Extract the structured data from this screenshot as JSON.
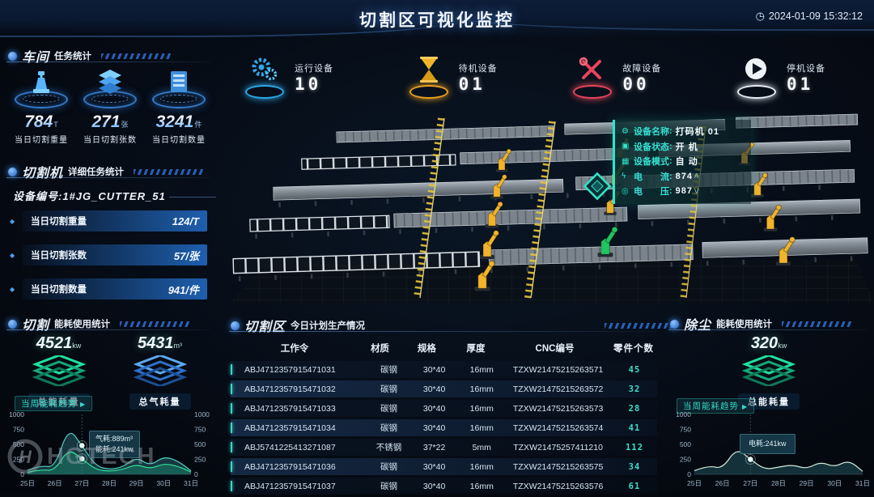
{
  "icons": {
    "play": "▶",
    "clock": "◷",
    "diamond": "◆"
  },
  "header": {
    "title": "切割区可视化监控",
    "timestamp": "2024-01-09 15:32:12"
  },
  "workshop_panel": {
    "title": "车间",
    "subtitle": "任务统计",
    "stats": [
      {
        "value": "784",
        "unit": "T",
        "label": "当日切割重量"
      },
      {
        "value": "271",
        "unit": "张",
        "label": "当日切割张数"
      },
      {
        "value": "3241",
        "unit": "件",
        "label": "当日切割数量"
      }
    ]
  },
  "cutter_panel": {
    "title": "切割机",
    "subtitle": "详细任务统计",
    "device_no": "设备编号:1#JG_CUTTER_51",
    "rows": [
      {
        "label": "当日切割重量",
        "value": "124/T"
      },
      {
        "label": "当日切割张数",
        "value": "57/张"
      },
      {
        "label": "当日切割数量",
        "value": "941/件"
      }
    ]
  },
  "cutting_energy_panel": {
    "title": "切割",
    "subtitle": "能耗使用统计",
    "stats": [
      {
        "value": "4521",
        "unit": "kw",
        "label": "总能耗量"
      },
      {
        "value": "5431",
        "unit": "m³",
        "label": "总气耗量"
      }
    ],
    "trend_button": "当周能耗趋势"
  },
  "dust_energy_panel": {
    "title": "除尘",
    "subtitle": "能耗使用统计",
    "stats": [
      {
        "value": "320",
        "unit": "kw",
        "label": "总能耗量"
      }
    ],
    "trend_button": "当周能耗趋势"
  },
  "status_bar": {
    "items": [
      {
        "label": "运行设备",
        "value": "10",
        "color": "#2ea8e8"
      },
      {
        "label": "待机设备",
        "value": "01",
        "color": "#e8a020"
      },
      {
        "label": "故障设备",
        "value": "00",
        "color": "#e8445a"
      },
      {
        "label": "停机设备",
        "value": "01",
        "color": "#e8eef5"
      }
    ]
  },
  "device_tooltip": {
    "rows": [
      {
        "label": "设备名称",
        "value": "打码机 01",
        "unit": ""
      },
      {
        "label": "设备状态",
        "value": "开 机",
        "unit": ""
      },
      {
        "label": "设备模式",
        "value": "自 动",
        "unit": ""
      },
      {
        "label": "电　　流",
        "value": "874",
        "unit": "A"
      },
      {
        "label": "电　　压",
        "value": "987",
        "unit": "V"
      }
    ]
  },
  "production_panel": {
    "title": "切割区",
    "subtitle": "今日计划生产情况",
    "columns": [
      "工作令",
      "材质",
      "规格",
      "厚度",
      "CNC编号",
      "零件个数"
    ],
    "rows": [
      {
        "work_order": "ABJ4712357915471031",
        "material": "碳钢",
        "spec": "30*40",
        "thickness": "16mm",
        "cnc": "TZXW21475215263571",
        "count": "45"
      },
      {
        "work_order": "ABJ4712357915471032",
        "material": "碳钢",
        "spec": "30*40",
        "thickness": "16mm",
        "cnc": "TZXW21475215263572",
        "count": "32"
      },
      {
        "work_order": "ABJ4712357915471033",
        "material": "碳钢",
        "spec": "30*40",
        "thickness": "16mm",
        "cnc": "TZXW21475215263573",
        "count": "28"
      },
      {
        "work_order": "ABJ4712357915471034",
        "material": "碳钢",
        "spec": "30*40",
        "thickness": "16mm",
        "cnc": "TZXW21475215263574",
        "count": "41"
      },
      {
        "work_order": "ABJ5741225413271087",
        "material": "不锈钢",
        "spec": "37*22",
        "thickness": "5mm",
        "cnc": "TZXW21475257411210",
        "count": "112"
      },
      {
        "work_order": "ABJ4712357915471036",
        "material": "碳钢",
        "spec": "30*40",
        "thickness": "16mm",
        "cnc": "TZXW21475215263575",
        "count": "34"
      },
      {
        "work_order": "ABJ4712357915471037",
        "material": "碳钢",
        "spec": "30*40",
        "thickness": "16mm",
        "cnc": "TZXW21475215263576",
        "count": "61"
      }
    ]
  },
  "logo": {
    "text": "HGTECH"
  },
  "chart_data": [
    {
      "type": "area",
      "title": "当周能耗趋势",
      "x_labels": [
        "25日",
        "26日",
        "27日",
        "28日",
        "29日",
        "30日",
        "31日"
      ],
      "ylim": [
        0,
        1000
      ],
      "yticks": [
        0,
        250,
        500,
        750,
        1000
      ],
      "dual_axis": true,
      "grid": false,
      "marker_index": 4,
      "series": [
        {
          "name": "气耗",
          "color": "#4fd0c0",
          "fill": "rgba(42,104,114,0.50)",
          "values": [
            70,
            150,
            110,
            790,
            480,
            140,
            80,
            120,
            290,
            140,
            300,
            230,
            60
          ]
        },
        {
          "name": "能耗",
          "color": "#35e09a",
          "fill": "rgba(30,190,140,0.28)",
          "values": [
            35,
            80,
            60,
            430,
            260,
            80,
            50,
            80,
            170,
            90,
            180,
            140,
            40
          ]
        }
      ],
      "tooltip": [
        "气耗:889m³",
        "能耗:241kw"
      ]
    },
    {
      "type": "area",
      "title": "当周能耗趋势",
      "x_labels": [
        "25日",
        "26日",
        "27日",
        "28日",
        "29日",
        "30日",
        "31日"
      ],
      "ylim": [
        0,
        1000
      ],
      "yticks": [
        0,
        250,
        500,
        750,
        1000
      ],
      "dual_axis": false,
      "grid": false,
      "marker_index": 4,
      "series": [
        {
          "name": "电耗",
          "color": "#cfeadb",
          "fill": "rgba(42,104,114,0.42)",
          "values": [
            60,
            150,
            90,
            440,
            250,
            80,
            120,
            160,
            90,
            210,
            120,
            240,
            50
          ]
        }
      ],
      "tooltip": [
        "电耗:241kw"
      ]
    }
  ]
}
